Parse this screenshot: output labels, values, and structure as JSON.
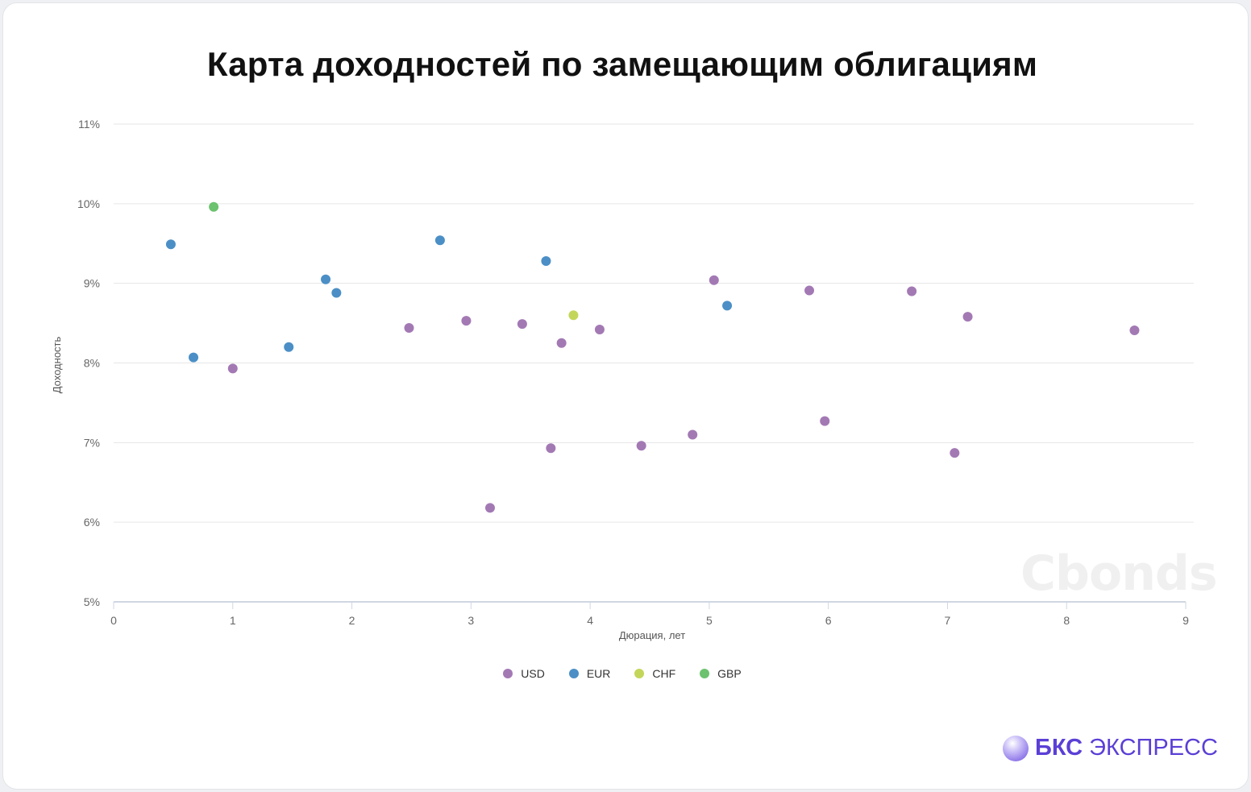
{
  "title": "Карта доходностей по замещающим облигациям",
  "watermark": "Cbonds",
  "brand": {
    "bold": "БКС",
    "rest": " ЭКСПРЕСС"
  },
  "chart_data": {
    "type": "scatter",
    "title": "Карта доходностей по замещающим облигациям",
    "xlabel": "Дюрация, лет",
    "ylabel": "Доходность",
    "xlim": [
      0,
      9
    ],
    "ylim": [
      5,
      11
    ],
    "xticks": [
      "0",
      "1",
      "2",
      "3",
      "4",
      "5",
      "6",
      "7",
      "8",
      "9"
    ],
    "yticks": [
      "5%",
      "6%",
      "7%",
      "8%",
      "9%",
      "10%",
      "11%"
    ],
    "grid": true,
    "legend_position": "bottom",
    "series": [
      {
        "name": "USD",
        "color": "#a379b4",
        "points": [
          [
            1.0,
            7.93
          ],
          [
            2.48,
            8.44
          ],
          [
            2.96,
            8.53
          ],
          [
            3.16,
            6.18
          ],
          [
            3.43,
            8.49
          ],
          [
            3.67,
            6.93
          ],
          [
            3.76,
            8.25
          ],
          [
            4.08,
            8.42
          ],
          [
            4.43,
            6.96
          ],
          [
            4.86,
            7.1
          ],
          [
            5.04,
            9.04
          ],
          [
            5.84,
            8.91
          ],
          [
            5.97,
            7.27
          ],
          [
            6.7,
            8.9
          ],
          [
            7.06,
            6.87
          ],
          [
            7.17,
            8.58
          ],
          [
            8.57,
            8.41
          ]
        ]
      },
      {
        "name": "EUR",
        "color": "#4b8fc6",
        "points": [
          [
            0.48,
            9.49
          ],
          [
            0.67,
            8.07
          ],
          [
            1.47,
            8.2
          ],
          [
            1.78,
            9.05
          ],
          [
            1.87,
            8.88
          ],
          [
            2.74,
            9.54
          ],
          [
            3.63,
            9.28
          ],
          [
            5.15,
            8.72
          ]
        ]
      },
      {
        "name": "CHF",
        "color": "#c4d65a",
        "points": [
          [
            3.86,
            8.6
          ]
        ]
      },
      {
        "name": "GBP",
        "color": "#6cc26f",
        "points": [
          [
            0.84,
            9.96
          ]
        ]
      }
    ]
  }
}
